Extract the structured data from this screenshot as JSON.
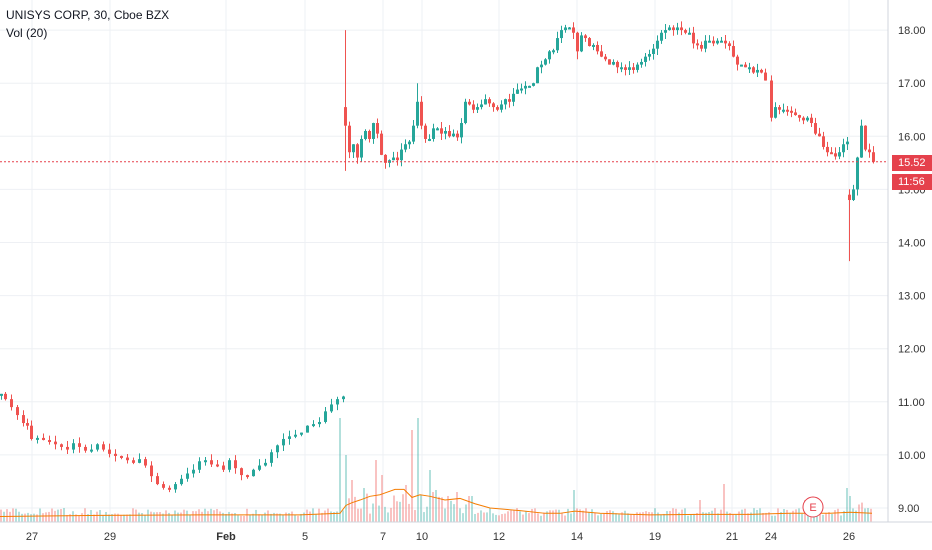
{
  "header": {
    "symbol_line": "UNISYS CORP, 30, Cboe BZX",
    "indicator_line": "Vol (20)"
  },
  "price_label": {
    "last_price": "15.52",
    "countdown": "11:56"
  },
  "earnings_marker": "E",
  "chart_data": {
    "type": "candlestick",
    "title": "UNISYS CORP, 30, Cboe BZX",
    "y_axis": {
      "ticks": [
        "9.00",
        "10.00",
        "11.00",
        "12.00",
        "13.00",
        "14.00",
        "15.00",
        "16.00",
        "17.00",
        "18.00"
      ],
      "range": [
        8.85,
        18.45
      ]
    },
    "x_axis": {
      "ticks": [
        "27",
        "29",
        "Feb",
        "5",
        "7",
        "10",
        "12",
        "14",
        "19",
        "21",
        "24",
        "26"
      ],
      "bold_ticks": [
        "Feb"
      ]
    },
    "last_price": 15.52,
    "colors": {
      "up": "#26a69a",
      "down": "#ef5350",
      "volume_ma": "#f57c00",
      "last_line": "#e5414c"
    },
    "price_path": [
      [
        0,
        11.15
      ],
      [
        4,
        11.05
      ],
      [
        10,
        10.9
      ],
      [
        16,
        10.75
      ],
      [
        22,
        10.6
      ],
      [
        26,
        10.55
      ],
      [
        30,
        10.3
      ],
      [
        36,
        10.32
      ],
      [
        42,
        10.28
      ],
      [
        48,
        10.25
      ],
      [
        54,
        10.2
      ],
      [
        60,
        10.15
      ],
      [
        66,
        10.1
      ],
      [
        72,
        10.22
      ],
      [
        78,
        10.15
      ],
      [
        84,
        10.08
      ],
      [
        90,
        10.1
      ],
      [
        96,
        10.2
      ],
      [
        102,
        10.1
      ],
      [
        108,
        10.02
      ],
      [
        114,
        9.98
      ],
      [
        120,
        9.95
      ],
      [
        126,
        9.9
      ],
      [
        132,
        9.85
      ],
      [
        138,
        9.92
      ],
      [
        144,
        9.8
      ],
      [
        150,
        9.6
      ],
      [
        156,
        9.45
      ],
      [
        162,
        9.38
      ],
      [
        168,
        9.35
      ],
      [
        174,
        9.45
      ],
      [
        180,
        9.55
      ],
      [
        186,
        9.65
      ],
      [
        192,
        9.72
      ],
      [
        198,
        9.88
      ],
      [
        204,
        9.9
      ],
      [
        210,
        9.82
      ],
      [
        216,
        9.8
      ],
      [
        222,
        9.72
      ],
      [
        228,
        9.9
      ],
      [
        234,
        9.75
      ],
      [
        240,
        9.62
      ],
      [
        246,
        9.6
      ],
      [
        252,
        9.72
      ],
      [
        258,
        9.8
      ],
      [
        264,
        9.85
      ],
      [
        270,
        10.05
      ],
      [
        276,
        10.18
      ],
      [
        282,
        10.3
      ],
      [
        288,
        10.35
      ],
      [
        294,
        10.38
      ],
      [
        300,
        10.42
      ],
      [
        306,
        10.55
      ],
      [
        312,
        10.58
      ],
      [
        318,
        10.62
      ],
      [
        324,
        10.82
      ],
      [
        330,
        10.95
      ],
      [
        336,
        11.05
      ],
      [
        342,
        11.1
      ],
      [
        344,
        16.2
      ],
      [
        348,
        15.7
      ],
      [
        352,
        15.85
      ],
      [
        356,
        15.6
      ],
      [
        360,
        15.95
      ],
      [
        364,
        16.1
      ],
      [
        368,
        15.95
      ],
      [
        372,
        16.25
      ],
      [
        376,
        16.05
      ],
      [
        380,
        15.65
      ],
      [
        384,
        15.5
      ],
      [
        388,
        15.55
      ],
      [
        392,
        15.6
      ],
      [
        396,
        15.55
      ],
      [
        400,
        15.75
      ],
      [
        404,
        15.85
      ],
      [
        408,
        15.9
      ],
      [
        412,
        16.2
      ],
      [
        416,
        16.65
      ],
      [
        420,
        16.2
      ],
      [
        424,
        15.95
      ],
      [
        428,
        15.95
      ],
      [
        432,
        16.15
      ],
      [
        436,
        16.15
      ],
      [
        440,
        16.05
      ],
      [
        444,
        16.1
      ],
      [
        448,
        16.0
      ],
      [
        452,
        16.05
      ],
      [
        456,
        15.98
      ],
      [
        460,
        16.25
      ],
      [
        464,
        16.65
      ],
      [
        468,
        16.6
      ],
      [
        472,
        16.5
      ],
      [
        476,
        16.55
      ],
      [
        480,
        16.6
      ],
      [
        484,
        16.7
      ],
      [
        488,
        16.62
      ],
      [
        492,
        16.55
      ],
      [
        496,
        16.5
      ],
      [
        500,
        16.6
      ],
      [
        504,
        16.7
      ],
      [
        508,
        16.65
      ],
      [
        512,
        16.8
      ],
      [
        516,
        16.88
      ],
      [
        520,
        16.9
      ],
      [
        524,
        16.95
      ],
      [
        528,
        16.95
      ],
      [
        532,
        17.0
      ],
      [
        536,
        17.3
      ],
      [
        540,
        17.35
      ],
      [
        544,
        17.45
      ],
      [
        548,
        17.6
      ],
      [
        552,
        17.62
      ],
      [
        556,
        17.85
      ],
      [
        560,
        18.0
      ],
      [
        564,
        18.05
      ],
      [
        568,
        18.05
      ],
      [
        572,
        17.95
      ],
      [
        576,
        17.6
      ],
      [
        580,
        17.9
      ],
      [
        584,
        17.85
      ],
      [
        588,
        17.7
      ],
      [
        592,
        17.72
      ],
      [
        596,
        17.6
      ],
      [
        600,
        17.5
      ],
      [
        604,
        17.45
      ],
      [
        608,
        17.35
      ],
      [
        612,
        17.4
      ],
      [
        616,
        17.3
      ],
      [
        620,
        17.3
      ],
      [
        624,
        17.25
      ],
      [
        628,
        17.3
      ],
      [
        632,
        17.25
      ],
      [
        636,
        17.35
      ],
      [
        640,
        17.4
      ],
      [
        644,
        17.5
      ],
      [
        648,
        17.55
      ],
      [
        652,
        17.65
      ],
      [
        656,
        17.8
      ],
      [
        660,
        17.95
      ],
      [
        664,
        18.0
      ],
      [
        668,
        18.05
      ],
      [
        672,
        18.0
      ],
      [
        676,
        18.05
      ],
      [
        680,
        18.0
      ],
      [
        684,
        17.95
      ],
      [
        688,
        17.95
      ],
      [
        692,
        17.75
      ],
      [
        696,
        17.72
      ],
      [
        700,
        17.65
      ],
      [
        704,
        17.8
      ],
      [
        708,
        17.8
      ],
      [
        712,
        17.75
      ],
      [
        716,
        17.8
      ],
      [
        720,
        17.8
      ],
      [
        724,
        17.75
      ],
      [
        728,
        17.7
      ],
      [
        732,
        17.5
      ],
      [
        736,
        17.35
      ],
      [
        740,
        17.35
      ],
      [
        744,
        17.3
      ],
      [
        748,
        17.3
      ],
      [
        752,
        17.2
      ],
      [
        756,
        17.25
      ],
      [
        760,
        17.2
      ],
      [
        764,
        17.05
      ],
      [
        770,
        16.35
      ],
      [
        774,
        16.55
      ],
      [
        778,
        16.5
      ],
      [
        782,
        16.5
      ],
      [
        786,
        16.48
      ],
      [
        790,
        16.45
      ],
      [
        794,
        16.4
      ],
      [
        798,
        16.35
      ],
      [
        802,
        16.3
      ],
      [
        806,
        16.35
      ],
      [
        810,
        16.25
      ],
      [
        814,
        16.05
      ],
      [
        818,
        16.0
      ],
      [
        822,
        15.8
      ],
      [
        826,
        15.7
      ],
      [
        830,
        15.68
      ],
      [
        834,
        15.62
      ],
      [
        838,
        15.7
      ],
      [
        842,
        15.85
      ],
      [
        846,
        15.9
      ],
      [
        848,
        14.8
      ],
      [
        852,
        15.0
      ],
      [
        856,
        15.6
      ],
      [
        860,
        16.2
      ],
      [
        864,
        15.75
      ],
      [
        868,
        15.7
      ],
      [
        872,
        15.52
      ]
    ],
    "volume_ma_path": [
      [
        0,
        8.84
      ],
      [
        100,
        8.86
      ],
      [
        200,
        8.87
      ],
      [
        300,
        8.87
      ],
      [
        340,
        8.9
      ],
      [
        346,
        9.05
      ],
      [
        352,
        9.1
      ],
      [
        360,
        9.15
      ],
      [
        370,
        9.22
      ],
      [
        380,
        9.25
      ],
      [
        395,
        9.35
      ],
      [
        404,
        9.35
      ],
      [
        412,
        9.2
      ],
      [
        420,
        9.25
      ],
      [
        430,
        9.22
      ],
      [
        445,
        9.15
      ],
      [
        460,
        9.18
      ],
      [
        475,
        9.08
      ],
      [
        490,
        9.0
      ],
      [
        520,
        8.95
      ],
      [
        545,
        8.9
      ],
      [
        560,
        8.9
      ],
      [
        575,
        8.94
      ],
      [
        600,
        8.9
      ],
      [
        650,
        8.87
      ],
      [
        700,
        8.88
      ],
      [
        750,
        8.88
      ],
      [
        790,
        8.9
      ],
      [
        830,
        8.9
      ],
      [
        850,
        8.92
      ],
      [
        872,
        8.9
      ]
    ]
  }
}
